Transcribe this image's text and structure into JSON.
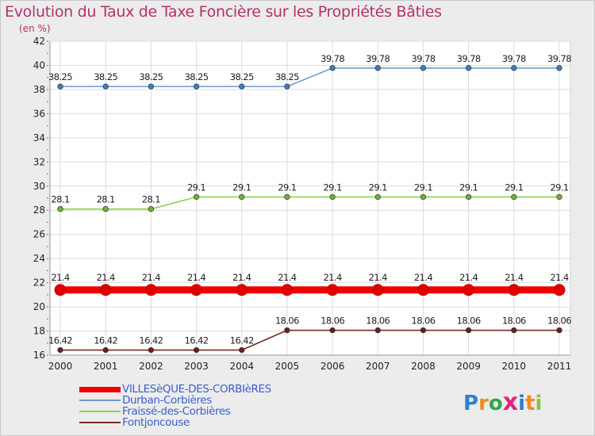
{
  "title": "Evolution du Taux de Taxe Foncière sur les Propriétés Bâties",
  "subtitle": "(en %)",
  "chart_data": {
    "type": "line",
    "title": "Evolution du Taux de Taxe Foncière sur les Propriétés Bâties",
    "ylabel": "(en %)",
    "xlabel": "",
    "x": [
      "2000",
      "2001",
      "2002",
      "2003",
      "2004",
      "2005",
      "2006",
      "2007",
      "2008",
      "2009",
      "2010",
      "2011"
    ],
    "ylim": [
      16,
      42
    ],
    "yticks": [
      "16",
      "18",
      "20",
      "22",
      "24",
      "26",
      "28",
      "30",
      "32",
      "34",
      "36",
      "38",
      "40",
      "42"
    ],
    "grid": true,
    "series": [
      {
        "name": "Durban-Corbières",
        "color": "#6b9bd2",
        "marker_color": "#3a7fc0",
        "values": [
          38.25,
          38.25,
          38.25,
          38.25,
          38.25,
          38.25,
          39.78,
          39.78,
          39.78,
          39.78,
          39.78,
          39.78
        ],
        "labels": [
          "38.25",
          "38.25",
          "38.25",
          "38.25",
          "38.25",
          "38.25",
          "39.78",
          "39.78",
          "39.78",
          "39.78",
          "39.78",
          "39.78"
        ]
      },
      {
        "name": "Fraissé-des-Corbières",
        "color": "#8fd14f",
        "marker_color": "#6cb52e",
        "values": [
          28.1,
          28.1,
          28.1,
          29.1,
          29.1,
          29.1,
          29.1,
          29.1,
          29.1,
          29.1,
          29.1,
          29.1
        ],
        "labels": [
          "28.1",
          "28.1",
          "28.1",
          "29.1",
          "29.1",
          "29.1",
          "29.1",
          "29.1",
          "29.1",
          "29.1",
          "29.1",
          "29.1"
        ]
      },
      {
        "name": "VILLESèQUE-DES-CORBIèRES",
        "color": "#ee0000",
        "marker_color": "#dd0000",
        "values": [
          21.4,
          21.4,
          21.4,
          21.4,
          21.4,
          21.4,
          21.4,
          21.4,
          21.4,
          21.4,
          21.4,
          21.4
        ],
        "labels": [
          "21.4",
          "21.4",
          "21.4",
          "21.4",
          "21.4",
          "21.4",
          "21.4",
          "21.4",
          "21.4",
          "21.4",
          "21.4",
          "21.4"
        ]
      },
      {
        "name": "Fontjoncouse",
        "color": "#7a2a2a",
        "marker_color": "#6a1e1e",
        "values": [
          16.42,
          16.42,
          16.42,
          16.42,
          16.42,
          18.06,
          18.06,
          18.06,
          18.06,
          18.06,
          18.06,
          18.06
        ],
        "labels": [
          "16.42",
          "16.42",
          "16.42",
          "16.42",
          "16.42",
          "18.06",
          "18.06",
          "18.06",
          "18.06",
          "18.06",
          "18.06",
          "18.06"
        ]
      }
    ]
  },
  "legend": [
    {
      "label": "VILLESèQUE-DES-CORBIèRES",
      "color": "#ee0000"
    },
    {
      "label": "Durban-Corbières",
      "color": "#6b9bd2"
    },
    {
      "label": "Fraissé-des-Corbières",
      "color": "#8fd14f"
    },
    {
      "label": "Fontjoncouse",
      "color": "#7a2a2a"
    }
  ],
  "logo": {
    "text": "Proxiti",
    "letters": [
      "P",
      "r",
      "o",
      "x",
      "i",
      "t",
      "i"
    ],
    "colors": [
      "#2f7fd0",
      "#f08a1c",
      "#2fa84a",
      "#e0247a",
      "#2f7fd0",
      "#f08a1c",
      "#8bc34a"
    ]
  }
}
